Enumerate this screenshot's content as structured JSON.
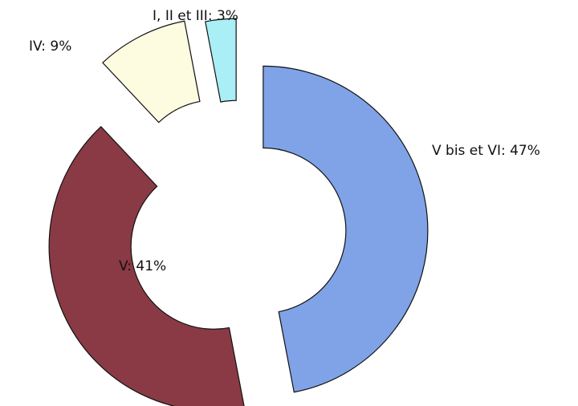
{
  "chart_data": {
    "type": "donut",
    "categories": [
      "V bis et VI: 47%",
      "V: 41%",
      "IV: 9%",
      "I, II et III: 3%"
    ],
    "values": [
      47,
      41,
      9,
      3
    ],
    "colors": [
      "#7fa3e6",
      "#8a3a44",
      "#fdfbe0",
      "#aaeef6"
    ]
  }
}
